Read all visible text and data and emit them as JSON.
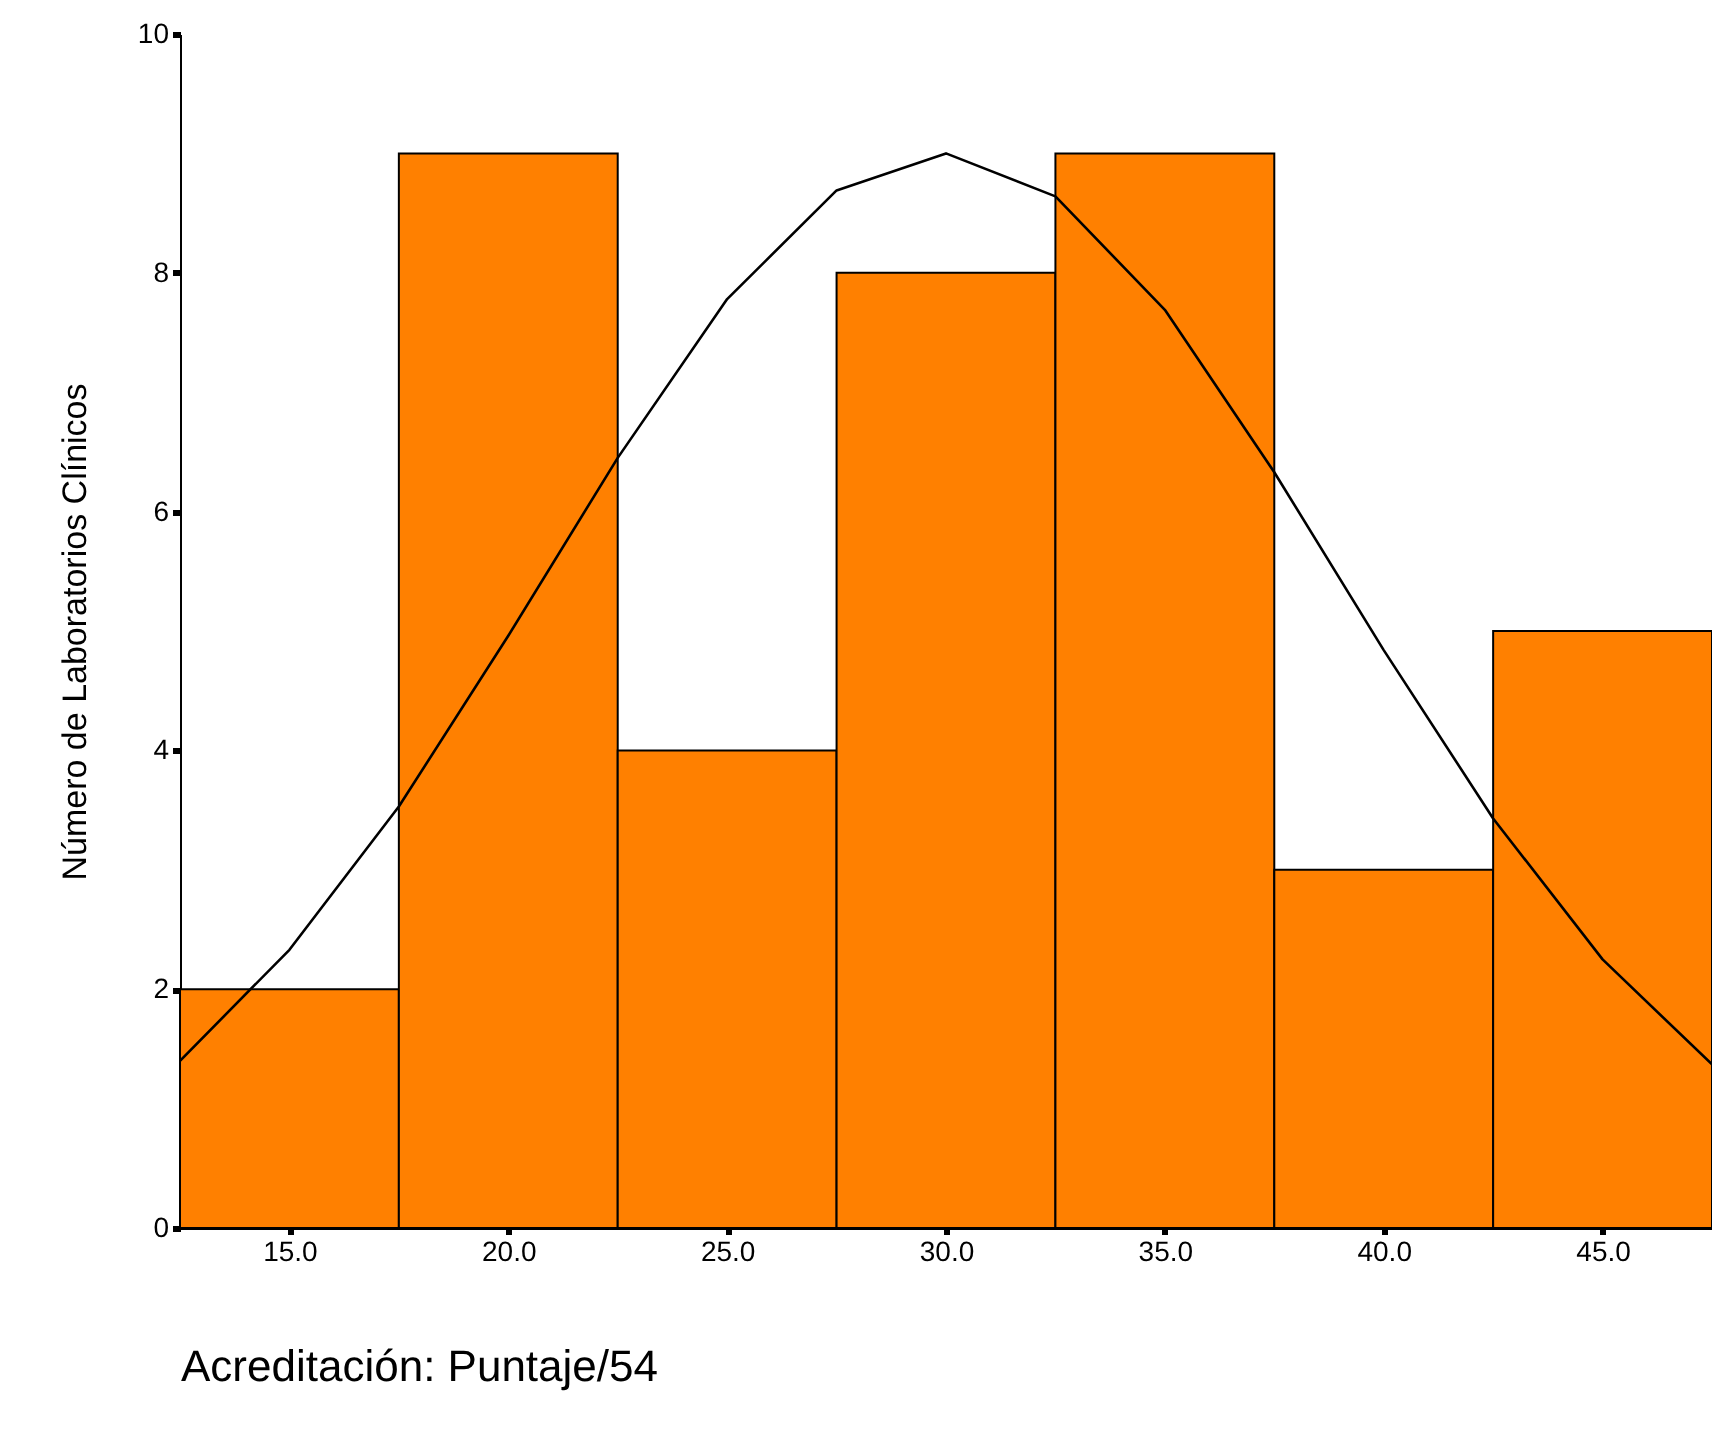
{
  "chart_data": {
    "type": "histogram",
    "xlabel": "Acreditación: Puntaje/54",
    "ylabel": "Número de Laboratorios Clínicos",
    "bins": [
      12.5,
      17.5,
      22.5,
      27.5,
      32.5,
      37.5,
      42.5,
      47.5
    ],
    "values": [
      2,
      9,
      4,
      8,
      9,
      3,
      5
    ],
    "color": "#ff8000",
    "series": [
      {
        "type": "line",
        "color": "#000000",
        "x": [
          12.5,
          15,
          17.5,
          20,
          22.5,
          25,
          27.5,
          30,
          32.5,
          35,
          37.5,
          40,
          42.5,
          45,
          47.5
        ],
        "values": [
          1.4,
          2.33,
          3.53,
          4.96,
          6.45,
          7.78,
          8.69,
          9.0,
          8.64,
          7.69,
          6.33,
          4.84,
          3.43,
          2.25,
          1.37
        ]
      }
    ],
    "xlim": [
      12.5,
      47.5
    ],
    "xticks": [
      {
        "value": 15,
        "label": "15.0"
      },
      {
        "value": 20,
        "label": "20.0"
      },
      {
        "value": 25,
        "label": "25.0"
      },
      {
        "value": 30,
        "label": "30.0"
      },
      {
        "value": 35,
        "label": "35.0"
      },
      {
        "value": 40,
        "label": "40.0"
      },
      {
        "value": 45,
        "label": "45.0"
      }
    ],
    "ylim": [
      0,
      10
    ],
    "yticks": [
      0,
      2,
      4,
      6,
      8,
      10
    ],
    "grid": false,
    "marker": "none",
    "line_style": "solid"
  }
}
